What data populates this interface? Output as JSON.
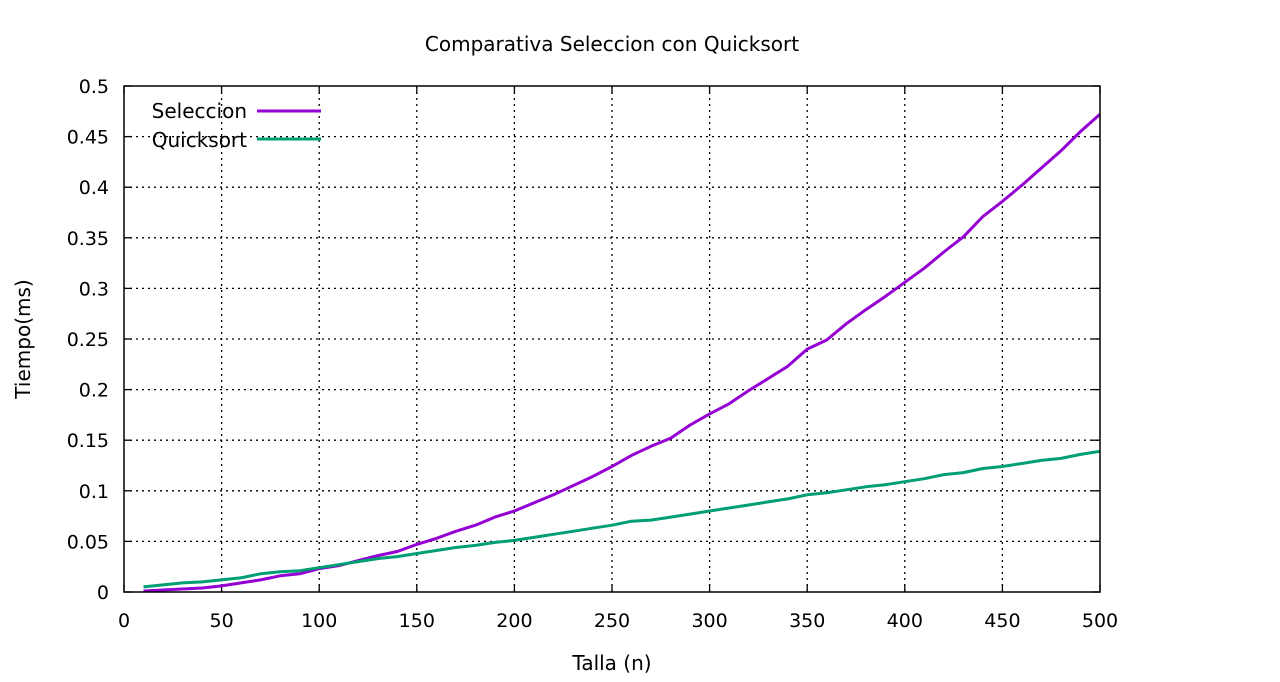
{
  "chart_data": {
    "type": "line",
    "title": "Comparativa Seleccion con Quicksort",
    "xlabel": "Talla (n)",
    "ylabel": "Tiempo(ms)",
    "xlim": [
      0,
      500
    ],
    "ylim": [
      0,
      0.5
    ],
    "xticks": [
      "0",
      "50",
      "100",
      "150",
      "200",
      "250",
      "300",
      "350",
      "400",
      "450",
      "500"
    ],
    "yticks": [
      "0",
      "0.05",
      "0.1",
      "0.15",
      "0.2",
      "0.25",
      "0.3",
      "0.35",
      "0.4",
      "0.45",
      "0.5"
    ],
    "grid": true,
    "legend_position": "top-left",
    "x": [
      10,
      20,
      30,
      40,
      50,
      60,
      70,
      80,
      90,
      100,
      110,
      120,
      130,
      140,
      150,
      160,
      170,
      180,
      190,
      200,
      210,
      220,
      230,
      240,
      250,
      260,
      270,
      280,
      290,
      300,
      310,
      320,
      330,
      340,
      350,
      360,
      370,
      380,
      390,
      400,
      410,
      420,
      430,
      440,
      450,
      460,
      470,
      480,
      490,
      500
    ],
    "series": [
      {
        "name": "Seleccion",
        "color": "#9400d3",
        "values": [
          0.001,
          0.002,
          0.003,
          0.004,
          0.006,
          0.009,
          0.012,
          0.016,
          0.018,
          0.023,
          0.026,
          0.031,
          0.036,
          0.04,
          0.047,
          0.053,
          0.06,
          0.066,
          0.074,
          0.08,
          0.088,
          0.096,
          0.105,
          0.114,
          0.124,
          0.135,
          0.144,
          0.152,
          0.165,
          0.176,
          0.186,
          0.199,
          0.211,
          0.223,
          0.24,
          0.249,
          0.265,
          0.279,
          0.292,
          0.306,
          0.32,
          0.336,
          0.351,
          0.371,
          0.386,
          0.402,
          0.419,
          0.436,
          0.455,
          0.472
        ]
      },
      {
        "name": "Quicksort",
        "color": "#009e73",
        "values": [
          0.005,
          0.007,
          0.009,
          0.01,
          0.012,
          0.014,
          0.018,
          0.02,
          0.021,
          0.024,
          0.027,
          0.03,
          0.033,
          0.035,
          0.038,
          0.041,
          0.044,
          0.046,
          0.049,
          0.051,
          0.054,
          0.057,
          0.06,
          0.063,
          0.066,
          0.07,
          0.071,
          0.074,
          0.077,
          0.08,
          0.083,
          0.086,
          0.089,
          0.092,
          0.096,
          0.098,
          0.101,
          0.104,
          0.106,
          0.109,
          0.112,
          0.116,
          0.118,
          0.122,
          0.124,
          0.127,
          0.13,
          0.132,
          0.136,
          0.139
        ]
      }
    ]
  }
}
